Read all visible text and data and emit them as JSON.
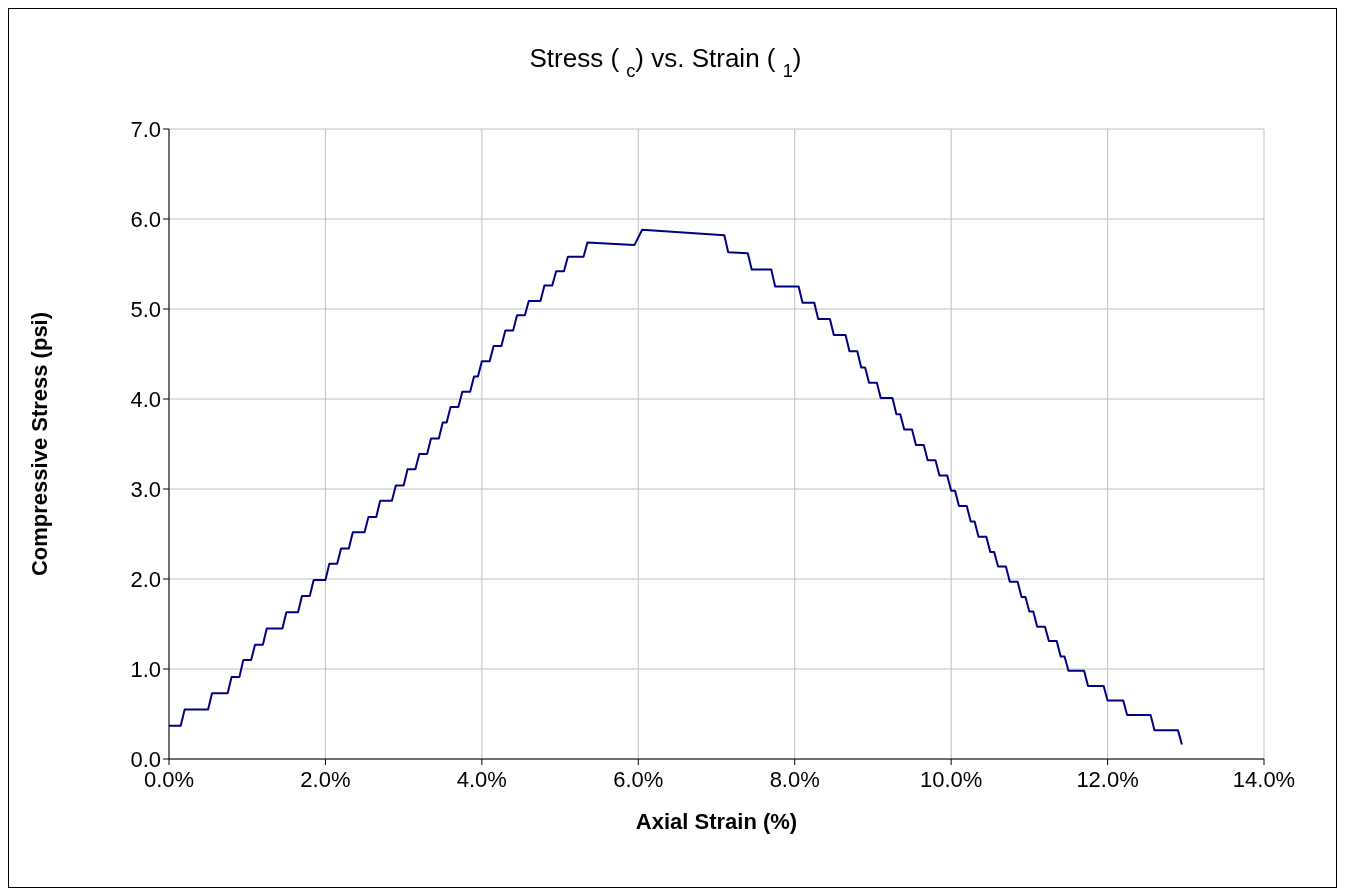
{
  "chart_data": {
    "type": "line",
    "title": "Stress ( $_{c}$) vs. Strain ( $_{1}$)",
    "xlabel": "Axial Strain (%)",
    "ylabel": "Compressive Stress (psi)",
    "xlim": [
      0,
      14
    ],
    "xticks": [
      {
        "value": 0,
        "label": "0.0%"
      },
      {
        "value": 2,
        "label": "2.0%"
      },
      {
        "value": 4,
        "label": "4.0%"
      },
      {
        "value": 6,
        "label": "6.0%"
      },
      {
        "value": 8,
        "label": "8.0%"
      },
      {
        "value": 10,
        "label": "10.0%"
      },
      {
        "value": 12,
        "label": "12.0%"
      },
      {
        "value": 14,
        "label": "14.0%"
      }
    ],
    "ylim": [
      0,
      7
    ],
    "yticks": [
      {
        "value": 0,
        "label": "0.0"
      },
      {
        "value": 1,
        "label": "1.0"
      },
      {
        "value": 2,
        "label": "2.0"
      },
      {
        "value": 3,
        "label": "3.0"
      },
      {
        "value": 4,
        "label": "4.0"
      },
      {
        "value": 5,
        "label": "5.0"
      },
      {
        "value": 6,
        "label": "6.0"
      },
      {
        "value": 7,
        "label": "7.0"
      }
    ],
    "grid": true,
    "marker": "none",
    "line_style": "solid",
    "series": [
      {
        "color": "#000080",
        "x": [
          0,
          0.15,
          0.2,
          0.5,
          0.55,
          0.75,
          0.8,
          0.9,
          0.95,
          1.05,
          1.1,
          1.2,
          1.25,
          1.45,
          1.5,
          1.65,
          1.7,
          1.8,
          1.85,
          2.0,
          2.05,
          2.15,
          2.2,
          2.3,
          2.35,
          2.5,
          2.55,
          2.65,
          2.7,
          2.85,
          2.9,
          3.0,
          3.05,
          3.15,
          3.2,
          3.3,
          3.35,
          3.45,
          3.5,
          3.55,
          3.6,
          3.7,
          3.75,
          3.85,
          3.9,
          3.95,
          4.0,
          4.1,
          4.15,
          4.25,
          4.3,
          4.4,
          4.45,
          4.55,
          4.6,
          4.75,
          4.8,
          4.9,
          4.95,
          5.05,
          5.1,
          5.3,
          5.35,
          5.95,
          6.05,
          7.1,
          7.15,
          7.4,
          7.45,
          7.7,
          7.75,
          8.05,
          8.1,
          8.25,
          8.3,
          8.45,
          8.5,
          8.65,
          8.7,
          8.8,
          8.85,
          8.9,
          8.95,
          9.05,
          9.1,
          9.25,
          9.3,
          9.35,
          9.4,
          9.5,
          9.55,
          9.65,
          9.7,
          9.8,
          9.85,
          9.95,
          10.0,
          10.05,
          10.1,
          10.2,
          10.25,
          10.3,
          10.35,
          10.45,
          10.5,
          10.55,
          10.6,
          10.7,
          10.75,
          10.85,
          10.9,
          10.95,
          11.0,
          11.05,
          11.1,
          11.2,
          11.25,
          11.35,
          11.4,
          11.45,
          11.5,
          11.7,
          11.75,
          11.95,
          12.0,
          12.2,
          12.25,
          12.55,
          12.6,
          12.9,
          12.95
        ],
        "values": [
          0.37,
          0.37,
          0.55,
          0.55,
          0.73,
          0.73,
          0.91,
          0.91,
          1.1,
          1.1,
          1.27,
          1.27,
          1.45,
          1.45,
          1.63,
          1.63,
          1.81,
          1.81,
          1.99,
          1.99,
          2.17,
          2.17,
          2.34,
          2.34,
          2.52,
          2.52,
          2.69,
          2.69,
          2.87,
          2.87,
          3.04,
          3.04,
          3.22,
          3.22,
          3.39,
          3.39,
          3.56,
          3.56,
          3.74,
          3.74,
          3.91,
          3.91,
          4.08,
          4.08,
          4.25,
          4.25,
          4.42,
          4.42,
          4.59,
          4.59,
          4.76,
          4.76,
          4.93,
          4.93,
          5.09,
          5.09,
          5.26,
          5.26,
          5.42,
          5.42,
          5.58,
          5.58,
          5.74,
          5.71,
          5.88,
          5.82,
          5.63,
          5.62,
          5.44,
          5.44,
          5.25,
          5.25,
          5.07,
          5.07,
          4.89,
          4.89,
          4.71,
          4.71,
          4.53,
          4.53,
          4.35,
          4.35,
          4.18,
          4.18,
          4.01,
          4.01,
          3.83,
          3.83,
          3.66,
          3.66,
          3.49,
          3.49,
          3.32,
          3.32,
          3.15,
          3.15,
          2.98,
          2.98,
          2.81,
          2.81,
          2.64,
          2.64,
          2.47,
          2.47,
          2.3,
          2.3,
          2.14,
          2.14,
          1.97,
          1.97,
          1.8,
          1.8,
          1.64,
          1.64,
          1.47,
          1.47,
          1.31,
          1.31,
          1.14,
          1.14,
          0.98,
          0.98,
          0.81,
          0.81,
          0.65,
          0.65,
          0.49,
          0.49,
          0.32,
          0.32,
          0.16
        ]
      }
    ]
  }
}
